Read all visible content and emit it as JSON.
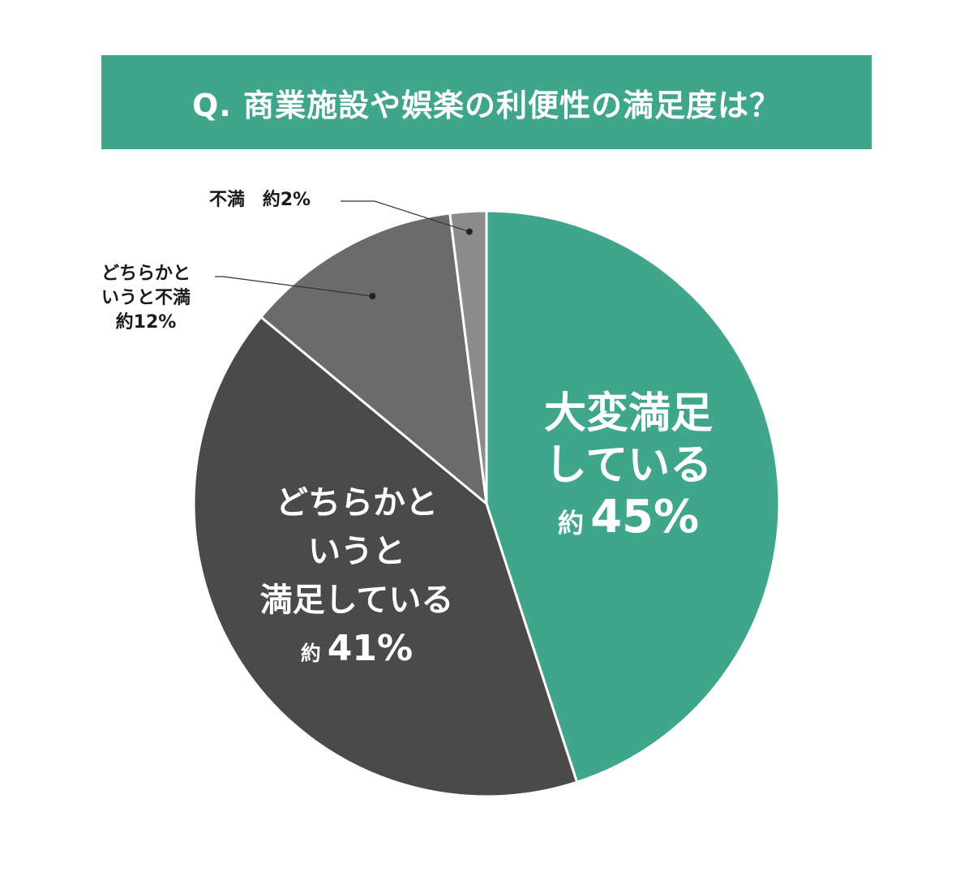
{
  "title": "Q. 商業施設や娯楽の利便性の満足度は？",
  "chart_data": {
    "type": "pie",
    "title": "Q. 商業施設や娯楽の利便性の満足度は？",
    "slices": [
      {
        "label_lines": [
          "大変満足",
          "している"
        ],
        "value": 45,
        "value_label": "45%",
        "prefix": "約",
        "color": "#3fa68c"
      },
      {
        "label_lines": [
          "どちらかと",
          "いうと",
          "満足している"
        ],
        "value": 41,
        "value_label": "41%",
        "prefix": "約",
        "color": "#4a4a4a"
      },
      {
        "label_lines": [
          "どちらかと",
          "いうと不満"
        ],
        "value": 12,
        "value_label": "12%",
        "prefix": "約",
        "color": "#6b6b6b"
      },
      {
        "label_lines": [
          "不満"
        ],
        "value": 2,
        "value_label": "2%",
        "prefix": "約",
        "color": "#8c8c8c"
      }
    ]
  }
}
